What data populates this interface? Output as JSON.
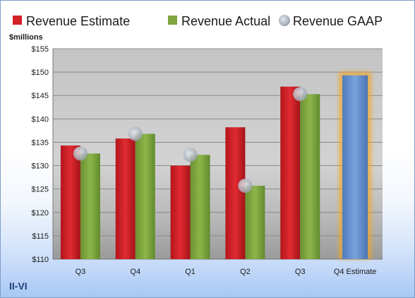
{
  "company": "II-VI",
  "chart_data": {
    "type": "bar",
    "unit_label": "$millions",
    "categories": [
      "Q3",
      "Q4",
      "Q1",
      "Q2",
      "Q3",
      "Q4 Estimate"
    ],
    "ylim": [
      110,
      155
    ],
    "yticks": [
      "$110",
      "$115",
      "$120",
      "$125",
      "$130",
      "$135",
      "$140",
      "$145",
      "$150",
      "$155"
    ],
    "ytick_values": [
      110,
      115,
      120,
      125,
      130,
      135,
      140,
      145,
      150,
      155
    ],
    "grid": true,
    "legend_position": "top",
    "series": [
      {
        "name": "Revenue Estimate",
        "color": "#d42128",
        "values": [
          134.3,
          135.8,
          130.0,
          138.2,
          146.9,
          null
        ]
      },
      {
        "name": "Revenue Actual",
        "color": "#7fa540",
        "values": [
          132.6,
          136.8,
          132.3,
          125.7,
          145.3,
          null
        ]
      },
      {
        "name": "Revenue GAAP",
        "color": "#b5bcc6",
        "marker": "circle",
        "values": [
          132.6,
          136.8,
          132.3,
          125.7,
          145.3,
          null
        ]
      }
    ],
    "forecast": {
      "category": "Q4 Estimate",
      "value": 149.3,
      "color": "#5b87c8",
      "glow_color": "#f5a623"
    }
  }
}
